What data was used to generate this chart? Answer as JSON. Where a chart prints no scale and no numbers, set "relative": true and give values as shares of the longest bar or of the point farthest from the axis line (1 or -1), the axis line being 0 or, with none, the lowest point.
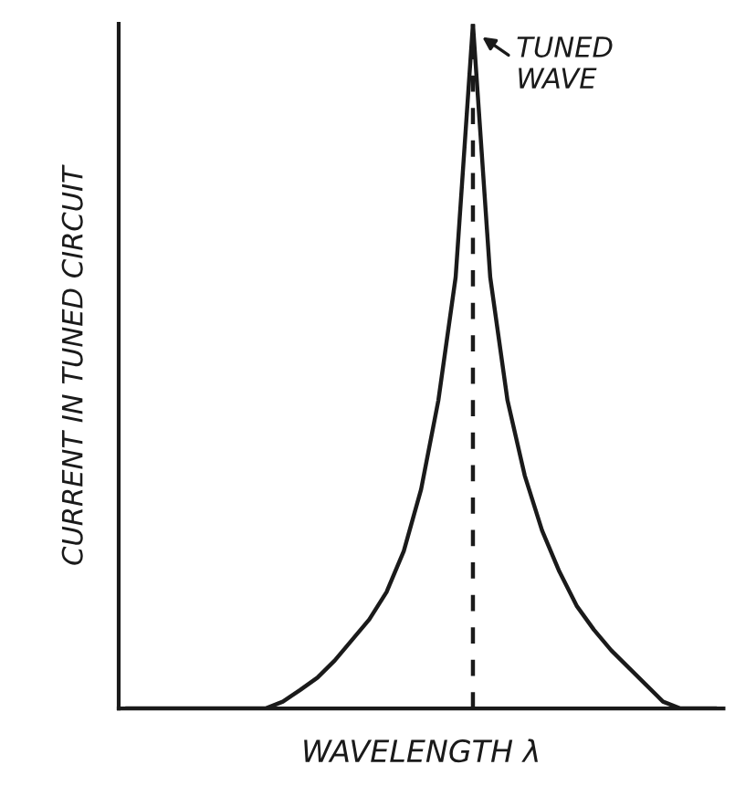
{
  "chart_data": {
    "type": "line",
    "relative": true,
    "xlabel": "WAVELENGTH λ",
    "ylabel": "CURRENT IN TUNED CIRCUIT",
    "categories": [
      null,
      null,
      null,
      null,
      null,
      null,
      null,
      null,
      null,
      null,
      null,
      null,
      null,
      null,
      null,
      null,
      null,
      null,
      null,
      null,
      null,
      null,
      null,
      null,
      null,
      null,
      null,
      null,
      null,
      null,
      null,
      null,
      null,
      null,
      null
    ],
    "series": [
      {
        "color": "#1a1a1a",
        "values": [
          0,
          0,
          0,
          0,
          0,
          0,
          0,
          0,
          0,
          0.01,
          0.027,
          0.045,
          0.07,
          0.1,
          0.13,
          0.17,
          0.23,
          0.32,
          0.45,
          0.63,
          1,
          0.63,
          0.45,
          0.34,
          0.26,
          0.2,
          0.15,
          0.115,
          0.085,
          0.06,
          0.035,
          0.01,
          0,
          0,
          0
        ]
      }
    ],
    "annotations": [
      "TUNED\nWAVE"
    ],
    "marker": "none",
    "line_style": "solid",
    "legend": false,
    "tick_labels": false
  }
}
